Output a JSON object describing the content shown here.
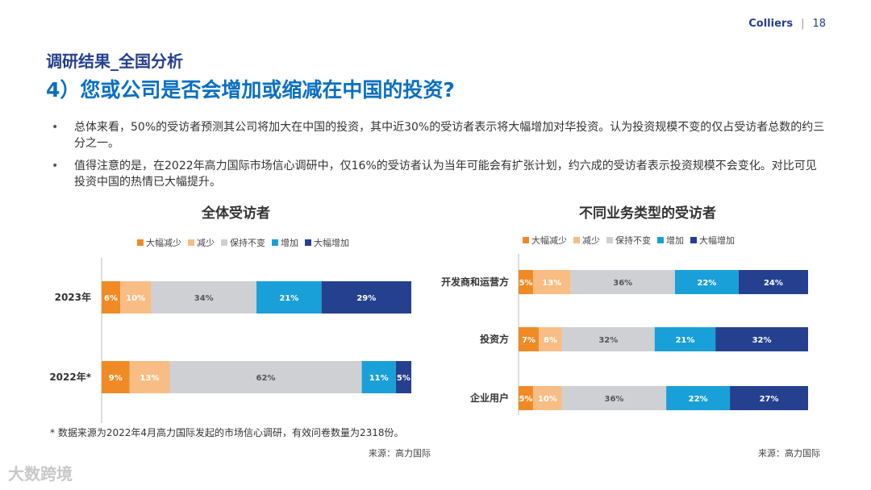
{
  "header": {
    "brand": "Colliers",
    "separator": "|",
    "page_number": "18"
  },
  "section_title": "调研结果_全国分析",
  "main_title": "4）您或公司是否会增加或缩减在中国的投资?",
  "bullets": [
    "总体来看，50%的受访者预测其公司将加大在中国的投资，其中近30%的受访者表示将大幅增加对华投资。认为投资规模不变的仅占受访者总数的约三分之一。",
    "值得注意的是，在2022年高力国际市场信心调研中，仅16%的受访者认为当年可能会有扩张计划，约六成的受访者表示投资规模不会变化。对比可见投资中国的热情已大幅提升。"
  ],
  "footnote": "* 数据来源为2022年4月高力国际发起的市场信心调研，有效问卷数量为2318份。",
  "watermark": "大数跨境",
  "colors": {
    "big_decrease": "#f08a24",
    "decrease": "#f7bd85",
    "unchanged": "#cfd0d4",
    "increase": "#1aa0d8",
    "big_increase": "#25408f"
  },
  "chart_data": [
    {
      "type": "bar",
      "orientation": "horizontal-stacked",
      "title": "全体受访者",
      "legend_position": "top",
      "categories": [
        "2023年",
        "2022年*"
      ],
      "series": [
        {
          "name": "大幅减少",
          "values": [
            6,
            9
          ]
        },
        {
          "name": "减少",
          "values": [
            10,
            13
          ]
        },
        {
          "name": "保持不变",
          "values": [
            34,
            62
          ]
        },
        {
          "name": "增加",
          "values": [
            21,
            11
          ]
        },
        {
          "name": "大幅增加",
          "values": [
            29,
            5
          ]
        }
      ],
      "source": "来源：高力国际"
    },
    {
      "type": "bar",
      "orientation": "horizontal-stacked",
      "title": "不同业务类型的受访者",
      "legend_position": "top",
      "categories": [
        "开发商和运营方",
        "投资方",
        "企业用户"
      ],
      "series": [
        {
          "name": "大幅减少",
          "values": [
            5,
            7,
            5
          ]
        },
        {
          "name": "减少",
          "values": [
            13,
            8,
            10
          ]
        },
        {
          "name": "保持不变",
          "values": [
            36,
            32,
            36
          ]
        },
        {
          "name": "增加",
          "values": [
            22,
            21,
            22
          ]
        },
        {
          "name": "大幅增加",
          "values": [
            24,
            32,
            27
          ]
        }
      ],
      "source": "来源：高力国际"
    }
  ]
}
